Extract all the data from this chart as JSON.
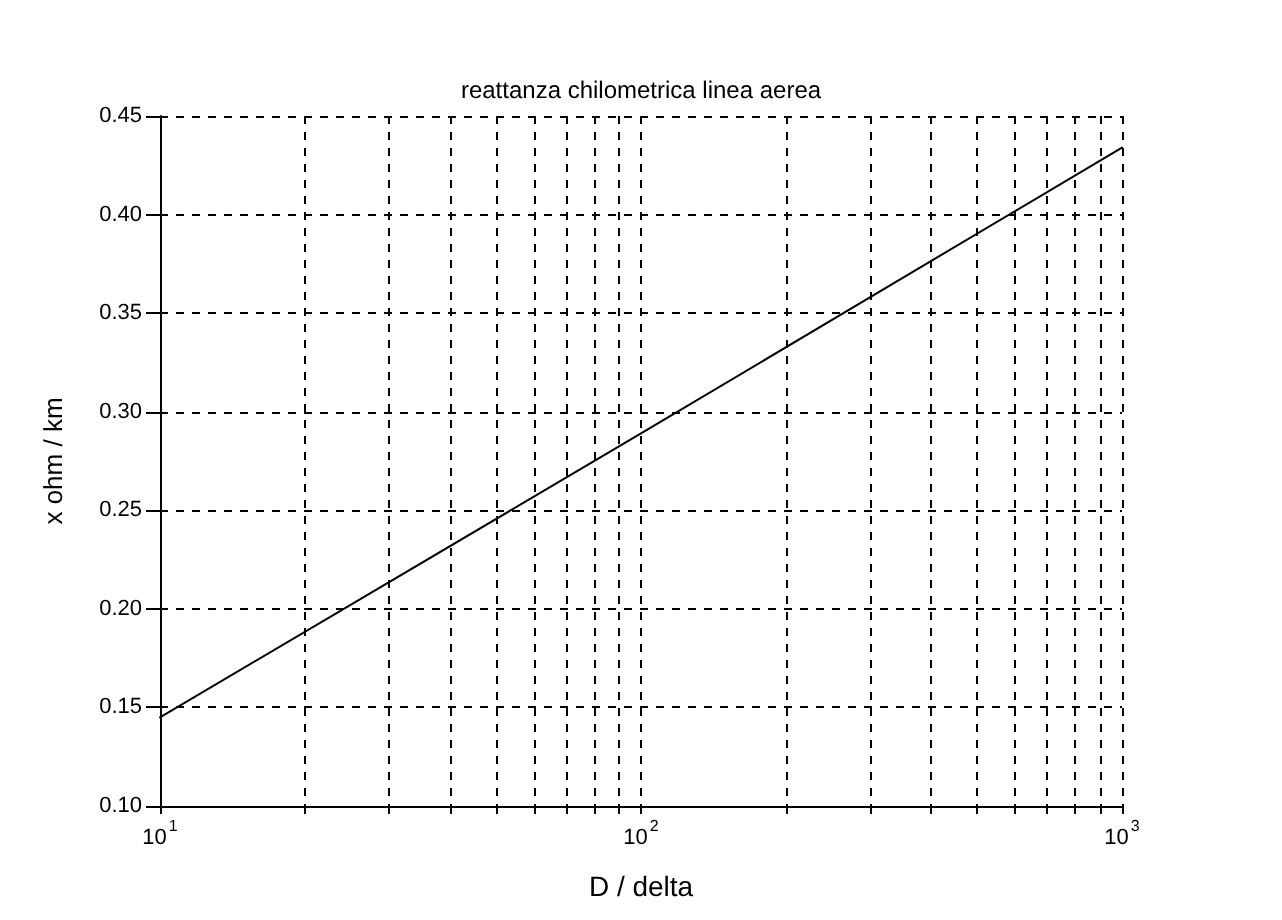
{
  "chart_data": {
    "type": "line",
    "title": "reattanza chilometrica linea aerea",
    "xlabel": "D / delta",
    "ylabel": "x ohm / km",
    "x": [
      10,
      100,
      1000
    ],
    "values": [
      0.145,
      0.289,
      0.434
    ],
    "color": "#000000",
    "log": "x",
    "xlim": [
      10,
      1000
    ],
    "xticks": [
      {
        "value": 10,
        "label": "10$^{1}$"
      },
      {
        "value": 20,
        "label": null
      },
      {
        "value": 30,
        "label": null
      },
      {
        "value": 40,
        "label": null
      },
      {
        "value": 50,
        "label": null
      },
      {
        "value": 60,
        "label": null
      },
      {
        "value": 70,
        "label": null
      },
      {
        "value": 80,
        "label": null
      },
      {
        "value": 90,
        "label": null
      },
      {
        "value": 100,
        "label": "10$^{2}$"
      },
      {
        "value": 200,
        "label": null
      },
      {
        "value": 300,
        "label": null
      },
      {
        "value": 400,
        "label": null
      },
      {
        "value": 500,
        "label": null
      },
      {
        "value": 600,
        "label": null
      },
      {
        "value": 700,
        "label": null
      },
      {
        "value": 800,
        "label": null
      },
      {
        "value": 900,
        "label": null
      },
      {
        "value": 1000,
        "label": "10$^{3}$"
      }
    ],
    "ylim": [
      0.1,
      0.45
    ],
    "yticks": [
      {
        "value": 0.1,
        "label": "0.10"
      },
      {
        "value": 0.15,
        "label": "0.15"
      },
      {
        "value": 0.2,
        "label": "0.20"
      },
      {
        "value": 0.25,
        "label": "0.25"
      },
      {
        "value": 0.3,
        "label": "0.30"
      },
      {
        "value": 0.35,
        "label": "0.35"
      },
      {
        "value": 0.4,
        "label": "0.40"
      },
      {
        "value": 0.45,
        "label": "0.45"
      }
    ],
    "grid": true,
    "marker": "none",
    "line_style": "solid"
  }
}
